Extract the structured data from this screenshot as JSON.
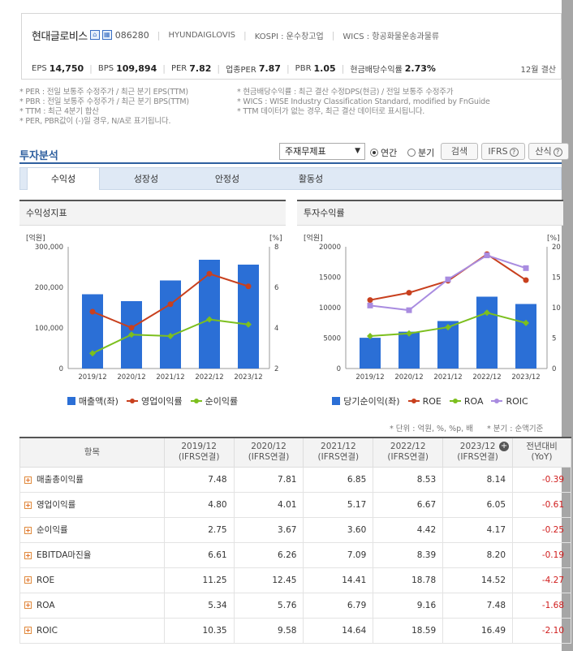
{
  "company": {
    "name": "현대글로비스",
    "code": "086280",
    "eng_name": "HYUNDAIGLOVIS",
    "market": "KOSPI : 운수창고업",
    "wics": "WICS : 항공화물운송과물류",
    "settle": "12월 결산"
  },
  "ratios": [
    {
      "label": "EPS",
      "value": "14,750"
    },
    {
      "label": "BPS",
      "value": "109,894"
    },
    {
      "label": "PER",
      "value": "7.82"
    },
    {
      "label": "업종PER",
      "value": "7.87"
    },
    {
      "label": "PBR",
      "value": "1.05"
    },
    {
      "label": "현금배당수익률",
      "value": "2.73%"
    }
  ],
  "notes_left": [
    "* PER : 전일 보통주 수정주가 / 최근 분기 EPS(TTM)",
    "* PBR : 전일 보통주 수정주가 / 최근 분기 BPS(TTM)",
    "* TTM : 최근 4분기 합산",
    "* PER, PBR값이 (-)일 경우, N/A로 표기됩니다."
  ],
  "notes_right": [
    "* 현금배당수익률 : 최근 결산 수정DPS(현금) / 전일 보통주 수정주가",
    "* WICS : WISE Industry Classification Standard, modified by FnGuide",
    "* TTM 데이터가 없는 경우, 최근 결산 데이터로 표시됩니다."
  ],
  "section": {
    "title": "투자분석",
    "select_value": "주재무제표",
    "radio_annual": "연간",
    "radio_quarter": "분기",
    "search_btn": "검색",
    "ifrs_btn": "IFRS",
    "calc_btn": "산식"
  },
  "tabs": [
    "수익성",
    "성장성",
    "안정성",
    "활동성"
  ],
  "panels": {
    "left_title": "수익성지표",
    "right_title": "투자수익률"
  },
  "chart_data": [
    {
      "type": "bar",
      "categories": [
        "2019/12",
        "2020/12",
        "2021/12",
        "2022/12",
        "2023/12"
      ],
      "left_unit": "[억원]",
      "right_unit": "[%]",
      "ylim": [
        0,
        300000
      ],
      "yticks": [
        "0",
        "100,000",
        "200,000",
        "300,000"
      ],
      "y2lim": [
        2,
        8
      ],
      "y2ticks": [
        "2",
        "4",
        "6",
        "8"
      ],
      "series": [
        {
          "name": "매출액(좌)",
          "kind": "bar",
          "axis": "left",
          "color": "#2b6fd6",
          "values": [
            183000,
            166000,
            217000,
            268000,
            256000
          ]
        },
        {
          "name": "영업이익률",
          "kind": "line",
          "axis": "right",
          "color": "#c8401e",
          "marker": "circle",
          "values": [
            4.8,
            4.01,
            5.17,
            6.67,
            6.05
          ]
        },
        {
          "name": "순이익률",
          "kind": "line",
          "axis": "right",
          "color": "#7cbf1e",
          "marker": "diamond",
          "values": [
            2.75,
            3.67,
            3.6,
            4.42,
            4.17
          ]
        }
      ]
    },
    {
      "type": "bar",
      "categories": [
        "2019/12",
        "2020/12",
        "2021/12",
        "2022/12",
        "2023/12"
      ],
      "left_unit": "[억원]",
      "right_unit": "[%]",
      "ylim": [
        0,
        20000
      ],
      "yticks": [
        "0",
        "5000",
        "10000",
        "15000",
        "20000"
      ],
      "y2lim": [
        0,
        20
      ],
      "y2ticks": [
        "0",
        "5",
        "10",
        "15",
        "20"
      ],
      "series": [
        {
          "name": "당기순이익(좌)",
          "kind": "bar",
          "axis": "left",
          "color": "#2b6fd6",
          "values": [
            5050,
            6050,
            7800,
            11800,
            10600
          ]
        },
        {
          "name": "ROE",
          "kind": "line",
          "axis": "right",
          "color": "#c8401e",
          "marker": "circle",
          "values": [
            11.25,
            12.45,
            14.41,
            18.78,
            14.52
          ]
        },
        {
          "name": "ROA",
          "kind": "line",
          "axis": "right",
          "color": "#7cbf1e",
          "marker": "diamond",
          "values": [
            5.34,
            5.76,
            6.79,
            9.16,
            7.48
          ]
        },
        {
          "name": "ROIC",
          "kind": "line",
          "axis": "right",
          "color": "#a98ce0",
          "marker": "square",
          "values": [
            10.35,
            9.58,
            14.64,
            18.59,
            16.49
          ]
        }
      ]
    }
  ],
  "unit_text": "* 단위 : 억원, %, %p, 배",
  "unit_text2": "* 분기 : 순액기준",
  "table": {
    "header_item": "항목",
    "columns": [
      {
        "l1": "2019/12",
        "l2": "(IFRS연결)"
      },
      {
        "l1": "2020/12",
        "l2": "(IFRS연결)"
      },
      {
        "l1": "2021/12",
        "l2": "(IFRS연결)"
      },
      {
        "l1": "2022/12",
        "l2": "(IFRS연결)"
      },
      {
        "l1": "2023/12",
        "l2": "(IFRS연결)"
      },
      {
        "l1": "전년대비",
        "l2": "(YoY)"
      }
    ],
    "rows": [
      {
        "name": "매출총이익률",
        "vals": [
          "7.48",
          "7.81",
          "6.85",
          "8.53",
          "8.14",
          "-0.39"
        ]
      },
      {
        "name": "영업이익률",
        "vals": [
          "4.80",
          "4.01",
          "5.17",
          "6.67",
          "6.05",
          "-0.61"
        ]
      },
      {
        "name": "순이익률",
        "vals": [
          "2.75",
          "3.67",
          "3.60",
          "4.42",
          "4.17",
          "-0.25"
        ]
      },
      {
        "name": "EBITDA마진율",
        "vals": [
          "6.61",
          "6.26",
          "7.09",
          "8.39",
          "8.20",
          "-0.19"
        ]
      },
      {
        "name": "ROE",
        "vals": [
          "11.25",
          "12.45",
          "14.41",
          "18.78",
          "14.52",
          "-4.27"
        ]
      },
      {
        "name": "ROA",
        "vals": [
          "5.34",
          "5.76",
          "6.79",
          "9.16",
          "7.48",
          "-1.68"
        ]
      },
      {
        "name": "ROIC",
        "vals": [
          "10.35",
          "9.58",
          "14.64",
          "18.59",
          "16.49",
          "-2.10"
        ]
      }
    ]
  }
}
